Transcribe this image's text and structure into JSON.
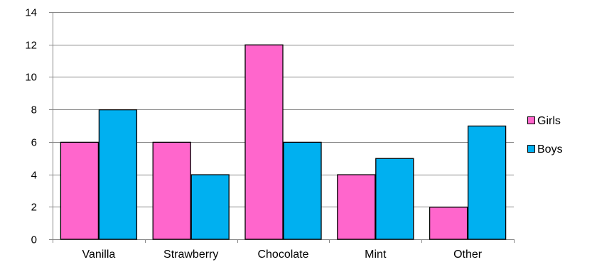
{
  "chart_data": {
    "type": "bar",
    "categories": [
      "Vanilla",
      "Strawberry",
      "Chocolate",
      "Mint",
      "Other"
    ],
    "series": [
      {
        "name": "Girls",
        "values": [
          6,
          6,
          12,
          4,
          2
        ],
        "color": "#ff66cc"
      },
      {
        "name": "Boys",
        "values": [
          8,
          4,
          6,
          5,
          7
        ],
        "color": "#00b0f0"
      }
    ],
    "title": "",
    "xlabel": "",
    "ylabel": "",
    "ylim": [
      0,
      14
    ],
    "yticks": [
      0,
      2,
      4,
      6,
      8,
      10,
      12,
      14
    ],
    "grid": true,
    "legend": "right",
    "bar_outline_color": "#000000",
    "grid_color": "#868686"
  }
}
